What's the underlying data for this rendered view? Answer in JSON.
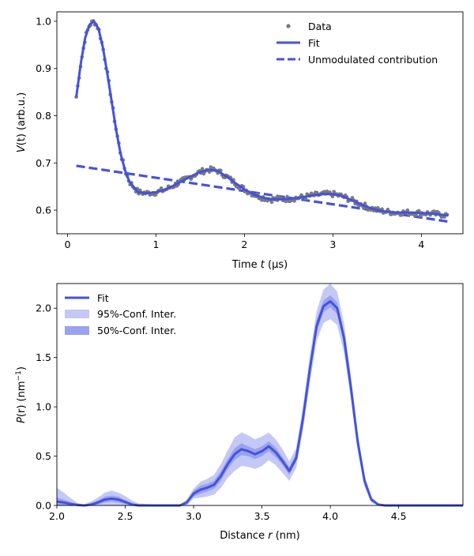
{
  "chart_data": [
    {
      "type": "line",
      "xlabel_pre": "Time ",
      "xlabel_var": "t",
      "xlabel_post": " (µs)",
      "ylabel_pre": "",
      "ylabel_var": "V",
      "ylabel_post": "(t) (arb.u.)",
      "xlim": [
        -0.12,
        4.47
      ],
      "ylim": [
        0.55,
        1.02
      ],
      "xticks": [
        0,
        1,
        2,
        3,
        4
      ],
      "yticks": [
        0.6,
        0.7,
        0.8,
        0.9,
        1.0
      ],
      "xtick_labels": [
        "0",
        "1",
        "2",
        "3",
        "4"
      ],
      "ytick_labels": [
        "0.6",
        "0.7",
        "0.8",
        "0.9",
        "1.0"
      ],
      "legend": {
        "position": "top-right",
        "entries": [
          "Data",
          "Fit",
          "Unmodulated contribution"
        ]
      },
      "colors": {
        "data": "#7a7a7a",
        "fit": "#4452dd"
      },
      "fit": {
        "x": [
          0.1,
          0.15,
          0.2,
          0.25,
          0.3,
          0.35,
          0.4,
          0.45,
          0.5,
          0.55,
          0.6,
          0.65,
          0.7,
          0.8,
          0.9,
          1.0,
          1.1,
          1.2,
          1.3,
          1.4,
          1.5,
          1.6,
          1.7,
          1.8,
          1.9,
          2.0,
          2.1,
          2.2,
          2.3,
          2.4,
          2.5,
          2.6,
          2.7,
          2.8,
          2.9,
          3.0,
          3.1,
          3.2,
          3.3,
          3.4,
          3.5,
          3.6,
          3.7,
          3.8,
          3.9,
          4.0,
          4.1,
          4.2,
          4.3
        ],
        "y": [
          0.84,
          0.91,
          0.965,
          0.993,
          1.0,
          0.985,
          0.945,
          0.89,
          0.83,
          0.77,
          0.72,
          0.685,
          0.66,
          0.638,
          0.636,
          0.638,
          0.643,
          0.652,
          0.662,
          0.672,
          0.681,
          0.686,
          0.683,
          0.671,
          0.657,
          0.644,
          0.634,
          0.627,
          0.623,
          0.623,
          0.624,
          0.626,
          0.629,
          0.632,
          0.634,
          0.634,
          0.63,
          0.622,
          0.614,
          0.606,
          0.6,
          0.597,
          0.595,
          0.595,
          0.595,
          0.594,
          0.593,
          0.591,
          0.589
        ]
      },
      "unmodulated": {
        "x": [
          0.1,
          4.3
        ],
        "y": [
          0.694,
          0.576
        ]
      }
    },
    {
      "type": "line",
      "xlabel_pre": "Distance ",
      "xlabel_var": "r",
      "xlabel_post": " (nm)",
      "ylabel_pre": "",
      "ylabel_var": "P",
      "ylabel_post": "(r) (nm",
      "ylabel_sup": "−1",
      "ylabel_tail": ")",
      "xlim": [
        2.0,
        4.97
      ],
      "ylim": [
        0.0,
        2.25
      ],
      "xticks": [
        2.0,
        2.5,
        3.0,
        3.5,
        4.0,
        4.5
      ],
      "yticks": [
        0.0,
        0.5,
        1.0,
        1.5,
        2.0
      ],
      "xtick_labels": [
        "2.0",
        "2.5",
        "3.0",
        "3.5",
        "4.0",
        "4.5"
      ],
      "ytick_labels": [
        "0.0",
        "0.5",
        "1.0",
        "1.5",
        "2.0"
      ],
      "legend": {
        "position": "top-left",
        "entries": [
          "Fit",
          "95%-Conf. Inter.",
          "50%-Conf. Inter."
        ]
      },
      "colors": {
        "fit": "#4452dd",
        "ci95": "#c4c8f5",
        "ci50": "#9aa2ee"
      },
      "fit": {
        "x": [
          2.0,
          2.05,
          2.1,
          2.15,
          2.2,
          2.25,
          2.3,
          2.35,
          2.4,
          2.45,
          2.5,
          2.55,
          2.6,
          2.7,
          2.8,
          2.85,
          2.9,
          2.95,
          3.0,
          3.05,
          3.1,
          3.15,
          3.2,
          3.25,
          3.3,
          3.35,
          3.4,
          3.45,
          3.5,
          3.55,
          3.6,
          3.65,
          3.7,
          3.75,
          3.8,
          3.85,
          3.9,
          3.95,
          4.0,
          4.05,
          4.1,
          4.15,
          4.2,
          4.25,
          4.3,
          4.35,
          4.4,
          4.5,
          4.97
        ],
        "y": [
          0.04,
          0.03,
          0.015,
          0.005,
          0.0,
          0.01,
          0.03,
          0.06,
          0.07,
          0.06,
          0.035,
          0.01,
          0.0,
          0.0,
          0.0,
          0.0,
          0.0,
          0.03,
          0.12,
          0.16,
          0.18,
          0.21,
          0.3,
          0.42,
          0.52,
          0.57,
          0.55,
          0.52,
          0.55,
          0.6,
          0.54,
          0.45,
          0.35,
          0.48,
          0.88,
          1.38,
          1.82,
          2.02,
          2.07,
          2.0,
          1.7,
          1.2,
          0.65,
          0.25,
          0.06,
          0.01,
          0.0,
          0.0,
          0.0
        ]
      },
      "ci95_halfwidth": [
        0.14,
        0.1,
        0.06,
        0.02,
        0.01,
        0.03,
        0.05,
        0.07,
        0.08,
        0.07,
        0.06,
        0.04,
        0.02,
        0.01,
        0.0,
        0.0,
        0.01,
        0.03,
        0.05,
        0.08,
        0.09,
        0.1,
        0.12,
        0.14,
        0.17,
        0.17,
        0.16,
        0.15,
        0.15,
        0.14,
        0.13,
        0.12,
        0.1,
        0.1,
        0.12,
        0.14,
        0.15,
        0.17,
        0.18,
        0.17,
        0.15,
        0.12,
        0.09,
        0.06,
        0.03,
        0.01,
        0.0,
        0.0,
        0.0
      ],
      "ci50_halfwidth": [
        0.04,
        0.03,
        0.02,
        0.01,
        0.0,
        0.01,
        0.02,
        0.03,
        0.03,
        0.03,
        0.02,
        0.01,
        0.01,
        0.0,
        0.0,
        0.0,
        0.0,
        0.01,
        0.03,
        0.04,
        0.04,
        0.04,
        0.05,
        0.05,
        0.06,
        0.06,
        0.05,
        0.05,
        0.05,
        0.05,
        0.05,
        0.04,
        0.04,
        0.04,
        0.05,
        0.05,
        0.06,
        0.06,
        0.06,
        0.06,
        0.05,
        0.05,
        0.04,
        0.03,
        0.01,
        0.0,
        0.0,
        0.0,
        0.0
      ]
    }
  ]
}
